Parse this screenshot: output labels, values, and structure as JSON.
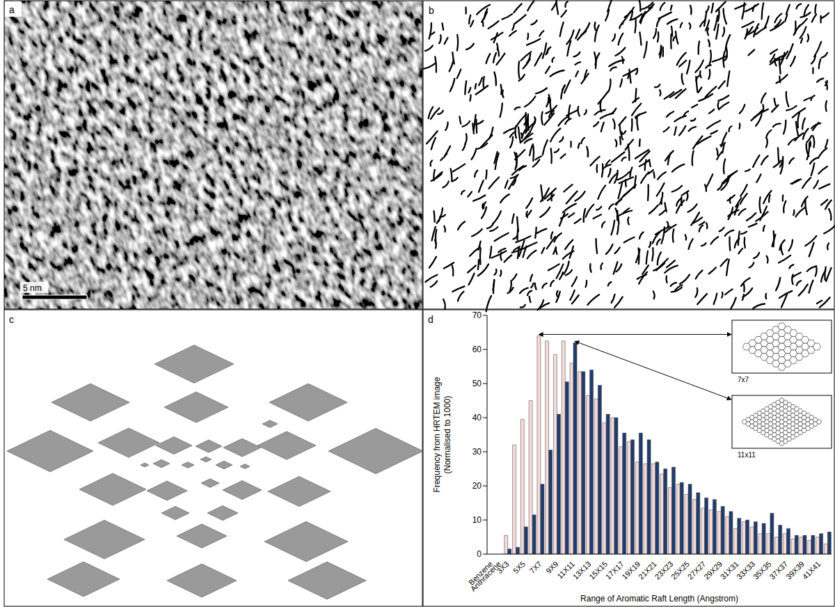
{
  "panels": [
    {
      "label": "a",
      "scale_bar": "5 nm"
    },
    {
      "label": "b"
    },
    {
      "label": "c"
    },
    {
      "label": "d"
    }
  ],
  "chart_data": {
    "type": "bar",
    "x_label": "Range of Aromatic Raft Length (Angstrom)",
    "y_label": [
      "Frequency from HRTEM image",
      "(Normalised to 1000)"
    ],
    "categories": [
      "Benzene",
      "Anthracene",
      "3X3",
      null,
      "5X5",
      null,
      "7X7",
      null,
      "9X9",
      null,
      "11X11",
      null,
      "13X13",
      null,
      "15X15",
      null,
      "17X17",
      null,
      "19X19",
      null,
      "21X21",
      null,
      "23X23",
      null,
      "25X25",
      null,
      "27X27",
      null,
      "29X29",
      null,
      "31X31",
      null,
      "33X33",
      null,
      "35X35",
      null,
      "37X37",
      null,
      "39X39",
      null,
      "41X41",
      null
    ],
    "series": [
      {
        "color": "#f2dcdb",
        "values": [
          0,
          0,
          5.5,
          32,
          39.5,
          45,
          64,
          62.5,
          58.5,
          62.5,
          56,
          53.5,
          46.5,
          45.5,
          38.5,
          40,
          31.5,
          33,
          27,
          26.5,
          26.5,
          23.5,
          19.5,
          20.5,
          17.5,
          16,
          13.5,
          13,
          12.5,
          11,
          7.5,
          9.5,
          8,
          6,
          6,
          5,
          6,
          4.5,
          5,
          4,
          5,
          3
        ]
      },
      {
        "color": "#1f3c6e",
        "values": [
          0,
          0,
          1.5,
          2,
          8,
          11.5,
          20.5,
          30.5,
          41,
          50.5,
          62,
          53.5,
          54,
          49.5,
          41,
          40,
          35.5,
          33.5,
          35.5,
          33.5,
          27,
          25,
          25.5,
          21,
          20.5,
          18,
          16.5,
          16,
          14,
          12.5,
          10.5,
          10,
          9.5,
          9,
          12,
          8.5,
          7.5,
          5.5,
          5.5,
          5.5,
          6,
          6.5
        ]
      }
    ],
    "ylim": [
      0,
      70
    ],
    "yticks": [
      0,
      10,
      20,
      30,
      40,
      50,
      60,
      70
    ],
    "grid": false,
    "annotations": [
      {
        "text": "7x7",
        "category": "7X7",
        "series": 0
      },
      {
        "text": "11x11",
        "category": "11X11",
        "series": 1
      }
    ]
  }
}
